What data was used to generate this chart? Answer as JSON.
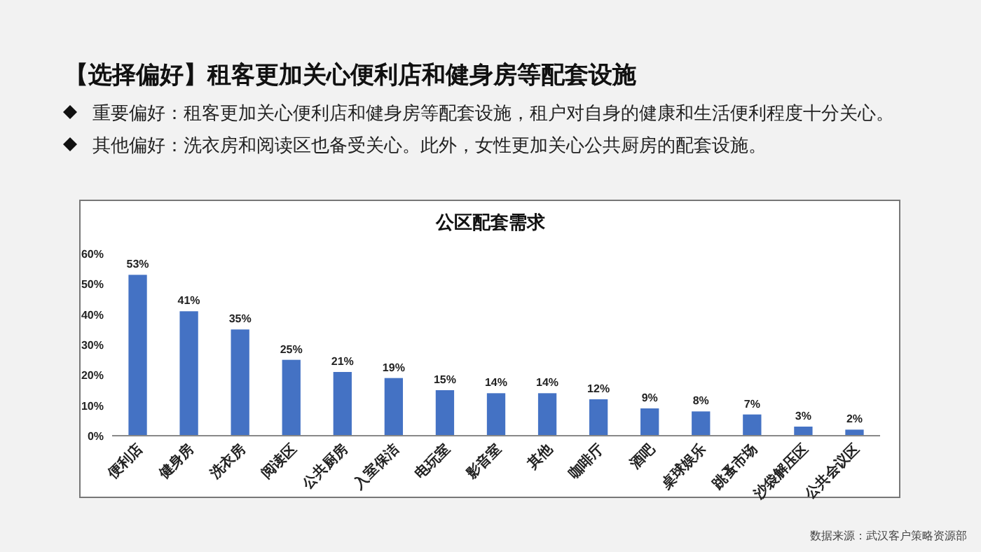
{
  "chart_data": {
    "type": "bar",
    "title": "公区配套需求",
    "annotations": [
      "【选择偏好】租客更加关心便利店和健身房等配套设施",
      "重要偏好：租客更加关心便利店和健身房等配套设施，租户对自身的健康和生活便利程度十分关心。",
      "其他偏好：洗衣房和阅读区也备受关心。此外，女性更加关心公共厨房的配套设施。",
      "数据来源：武汉客户策略资源部"
    ],
    "categories": [
      "便利店",
      "健身房",
      "洗衣房",
      "阅读区",
      "公共厨房",
      "入室保洁",
      "电玩室",
      "影音室",
      "其他",
      "咖啡厅",
      "酒吧",
      "桌球娱乐",
      "跳蚤市场",
      "沙袋解压区",
      "公共会议区"
    ],
    "values": [
      53,
      41,
      35,
      25,
      21,
      19,
      15,
      14,
      14,
      12,
      9,
      8,
      7,
      3,
      2
    ],
    "value_labels": [
      "53%",
      "41%",
      "35%",
      "25%",
      "21%",
      "19%",
      "15%",
      "14%",
      "14%",
      "12%",
      "9%",
      "8%",
      "7%",
      "3%",
      "2%"
    ],
    "color": "#4472c4",
    "ylim": [
      0,
      60
    ],
    "yticks": [
      {
        "value": 0,
        "label": "0%"
      },
      {
        "value": 10,
        "label": "10%"
      },
      {
        "value": 20,
        "label": "20%"
      },
      {
        "value": 30,
        "label": "30%"
      },
      {
        "value": 40,
        "label": "40%"
      },
      {
        "value": 50,
        "label": "50%"
      },
      {
        "value": 60,
        "label": "60%"
      }
    ],
    "grid": false
  }
}
